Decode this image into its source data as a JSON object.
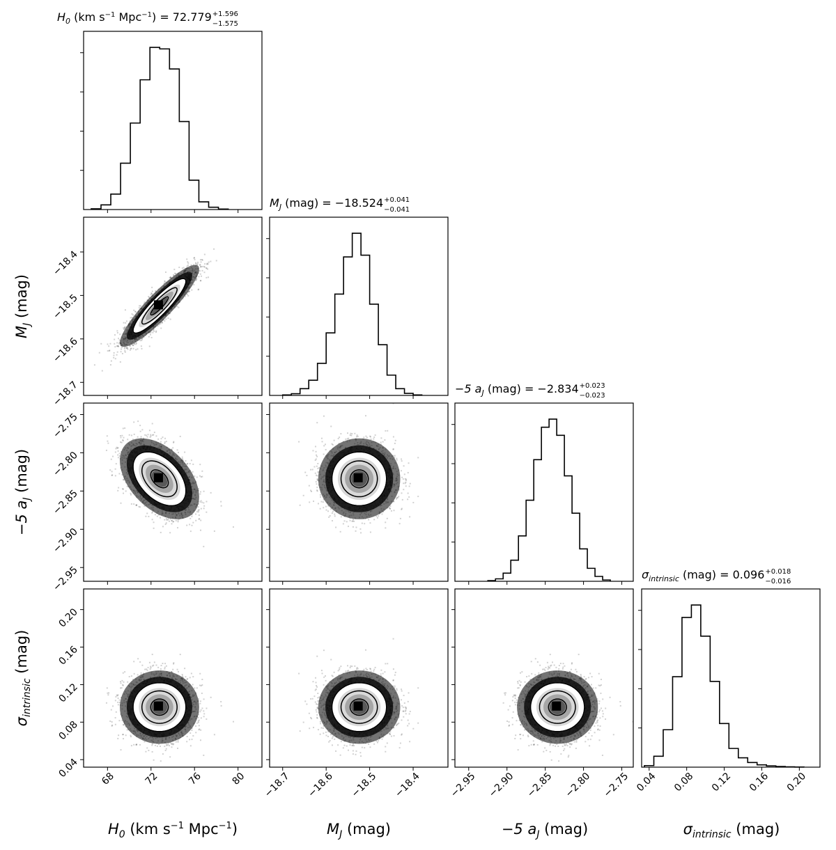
{
  "chart_data": {
    "type": "corner",
    "parameters": [
      {
        "key": "H0",
        "label_main": "H",
        "label_sub": "0",
        "label_rest": " (km s",
        "label_sup": "−1",
        "label_rest2": " Mpc",
        "label_sup2": "−1",
        "label_end": ")",
        "median": 72.779,
        "err_plus": 1.596,
        "err_minus": 1.575,
        "range": [
          65.8,
          82.2
        ],
        "ticks": [
          68,
          72,
          76,
          80
        ],
        "tick_labels": [
          "68",
          "72",
          "76",
          "80"
        ]
      },
      {
        "key": "MJ",
        "label_main": "M",
        "label_sub": "J",
        "label_rest": " (mag)",
        "median": -18.524,
        "err_plus": 0.041,
        "err_minus": 0.041,
        "range": [
          -18.73,
          -18.32
        ],
        "ticks": [
          -18.7,
          -18.6,
          -18.5,
          -18.4
        ],
        "tick_labels": [
          "−18.7",
          "−18.6",
          "−18.5",
          "−18.4"
        ]
      },
      {
        "key": "aJ",
        "label_main": "−5 a",
        "label_sub": "J",
        "label_rest": " (mag)",
        "median": -2.834,
        "err_plus": 0.023,
        "err_minus": 0.023,
        "range": [
          -2.968,
          -2.735
        ],
        "ticks": [
          -2.95,
          -2.9,
          -2.85,
          -2.8,
          -2.75
        ],
        "tick_labels": [
          "−2.95",
          "−2.90",
          "−2.85",
          "−2.80",
          "−2.75"
        ]
      },
      {
        "key": "sigma",
        "label_main": "σ",
        "label_sub": "intrinsic",
        "label_rest": " (mag)",
        "median": 0.096,
        "err_plus": 0.018,
        "err_minus": 0.016,
        "range": [
          0.032,
          0.222
        ],
        "ticks": [
          0.04,
          0.08,
          0.12,
          0.16,
          0.2
        ],
        "tick_labels": [
          "0.04",
          "0.08",
          "0.12",
          "0.16",
          "0.20"
        ]
      }
    ],
    "titles": [
      {
        "main": "H",
        "sub": "0",
        "text": " (km s",
        "sup": "−1",
        "text2": " Mpc",
        "sup2": "−1",
        "text3": ") = 72.779",
        "ep": "+1.596",
        "em": "−1.575"
      },
      {
        "main": "M",
        "sub": "J",
        "text": " (mag) = −18.524",
        "ep": "+0.041",
        "em": "−0.041"
      },
      {
        "main": "−5 a",
        "sub": "J",
        "text": " (mag) = −2.834",
        "ep": "+0.023",
        "em": "−0.023"
      },
      {
        "main": "σ",
        "sub": "intrinsic",
        "text": " (mag) = 0.096",
        "ep": "+0.018",
        "em": "−0.016"
      }
    ],
    "correlations": {
      "1_0": 0.9,
      "2_0": -0.45,
      "2_1": 0.0,
      "3_0": 0.0,
      "3_1": 0.0,
      "3_2": 0.0
    },
    "histograms": [
      {
        "edges": [
          66.5,
          67.4,
          68.3,
          69.2,
          70.1,
          71.0,
          71.9,
          72.8,
          73.7,
          74.6,
          75.5,
          76.4,
          77.3,
          78.2,
          79.1
        ],
        "counts": [
          0.5,
          3,
          10,
          30,
          56,
          84,
          105,
          104,
          91,
          57,
          19,
          5,
          1.5,
          0.3
        ]
      },
      {
        "edges": [
          -18.7,
          -18.68,
          -18.66,
          -18.64,
          -18.62,
          -18.6,
          -18.58,
          -18.56,
          -18.54,
          -18.52,
          -18.5,
          -18.48,
          -18.46,
          -18.44,
          -18.42,
          -18.4,
          -18.38
        ],
        "counts": [
          0.3,
          1,
          4,
          9,
          19,
          37,
          60,
          82,
          96,
          83,
          54,
          30,
          12,
          4,
          1.2,
          0.3
        ]
      },
      {
        "edges": [
          -2.925,
          -2.915,
          -2.905,
          -2.895,
          -2.885,
          -2.875,
          -2.865,
          -2.855,
          -2.845,
          -2.835,
          -2.825,
          -2.815,
          -2.805,
          -2.795,
          -2.785,
          -2.775,
          -2.765
        ],
        "counts": [
          0.4,
          1.5,
          5,
          13,
          28,
          50,
          75,
          95,
          100,
          90,
          65,
          42,
          20,
          8,
          3,
          0.8
        ]
      },
      {
        "edges": [
          0.035,
          0.045,
          0.055,
          0.065,
          0.075,
          0.085,
          0.095,
          0.105,
          0.115,
          0.125,
          0.135,
          0.145,
          0.155,
          0.165,
          0.175,
          0.185,
          0.195,
          0.205
        ],
        "counts": [
          1,
          7,
          24,
          58,
          96,
          104,
          84,
          55,
          28,
          12,
          6,
          3,
          1.5,
          0.8,
          0.4,
          0.2,
          0.1
        ]
      }
    ],
    "colors": {
      "ink": "#000000",
      "background": "#ffffff"
    }
  }
}
